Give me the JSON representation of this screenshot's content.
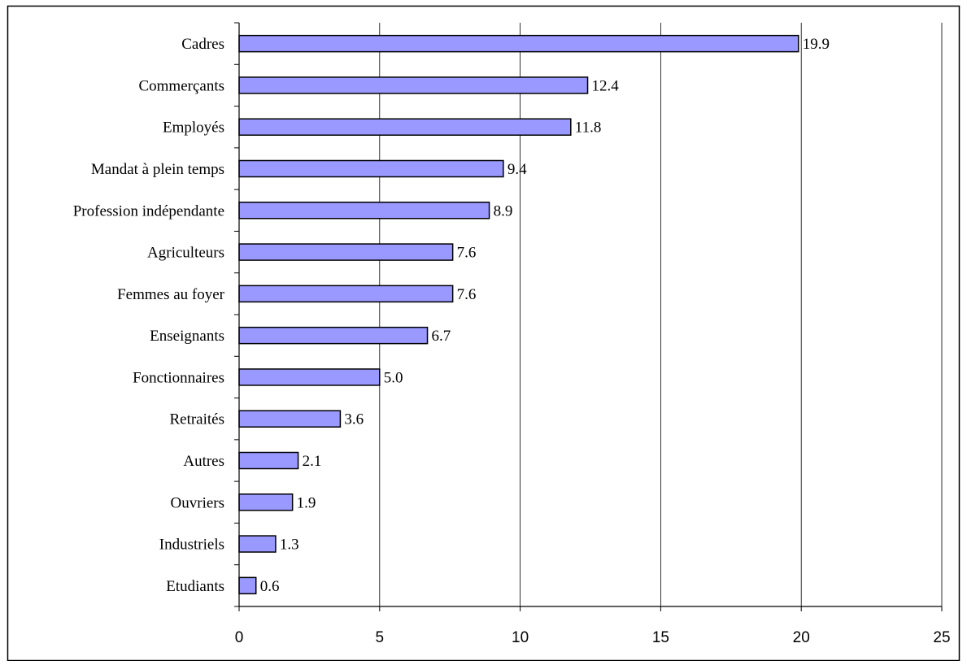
{
  "chart_data": {
    "type": "bar",
    "orientation": "horizontal",
    "title": "",
    "xlabel": "",
    "ylabel": "",
    "categories": [
      "Cadres",
      "Commerçants",
      "Employés",
      "Mandat à plein temps",
      "Profession indépendante",
      "Agriculteurs",
      "Femmes au foyer",
      "Enseignants",
      "Fonctionnaires",
      "Retraités",
      "Autres",
      "Ouvriers",
      "Industriels",
      "Etudiants"
    ],
    "values": [
      19.9,
      12.4,
      11.8,
      9.4,
      8.9,
      7.6,
      7.6,
      6.7,
      5.0,
      3.6,
      2.1,
      1.9,
      1.3,
      0.6
    ],
    "data_labels": [
      "19.9",
      "12.4",
      "11.8",
      "9.4",
      "8.9",
      "7.6",
      "7.6",
      "6.7",
      "5.0",
      "3.6",
      "2.1",
      "1.9",
      "1.3",
      "0.6"
    ],
    "xlim": [
      0,
      25
    ],
    "x_ticks": [
      "0",
      "5",
      "10",
      "15",
      "20",
      "25"
    ],
    "grid": "vertical major gridlines",
    "legend": "none",
    "bar_color": "#9999ff",
    "bar_border_color": "#000000"
  }
}
